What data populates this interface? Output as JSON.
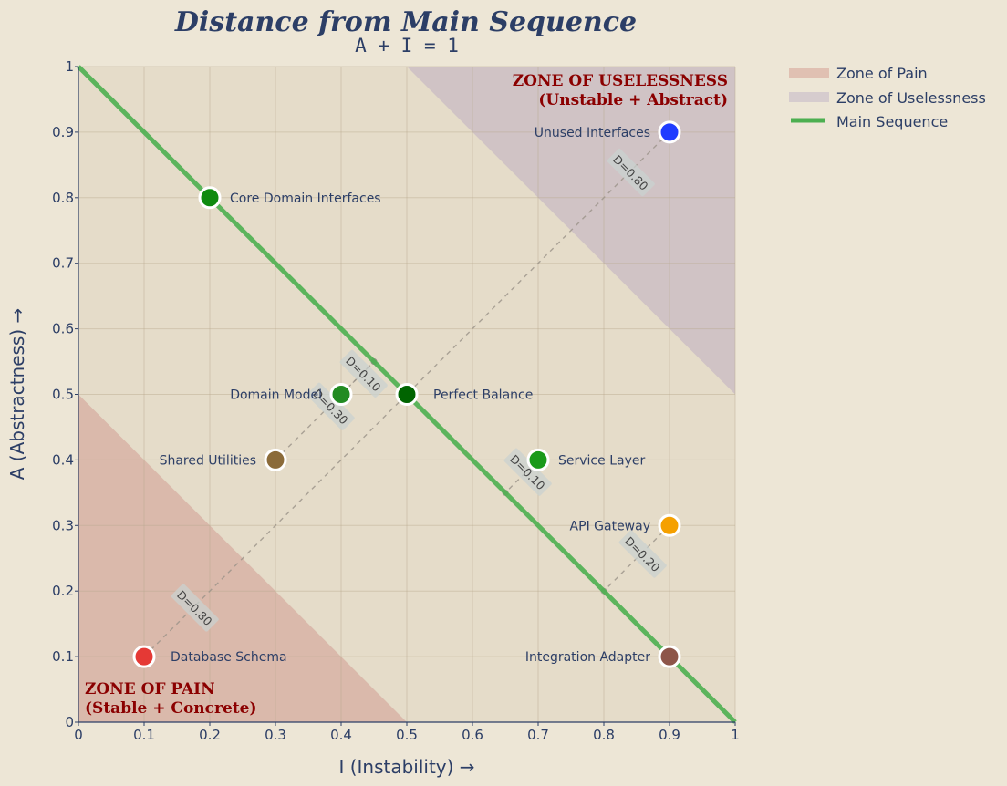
{
  "chart_data": {
    "type": "scatter",
    "title": "Distance from Main Sequence",
    "subtitle": "A + I = 1",
    "xlabel": "I (Instability) →",
    "ylabel": "A (Abstractness) →",
    "xlim": [
      0,
      1
    ],
    "ylim": [
      0,
      1
    ],
    "grid": true,
    "x_ticks": [
      "0",
      "0.1",
      "0.2",
      "0.3",
      "0.4",
      "0.5",
      "0.6",
      "0.7",
      "0.8",
      "0.9",
      "1"
    ],
    "y_ticks": [
      "0",
      "0.1",
      "0.2",
      "0.3",
      "0.4",
      "0.5",
      "0.6",
      "0.7",
      "0.8",
      "0.9",
      "1"
    ],
    "legend_position": "outside-right-top",
    "legend": [
      {
        "label": "Zone of Pain",
        "type": "patch",
        "color": "#e0c0b2"
      },
      {
        "label": "Zone of Uselessness",
        "type": "patch",
        "color": "#d6ccce"
      },
      {
        "label": "Main Sequence",
        "type": "line",
        "color": "#4caf50"
      }
    ],
    "main_sequence": {
      "from": [
        0,
        1
      ],
      "to": [
        1,
        0
      ],
      "color": "#4caf50"
    },
    "zones": [
      {
        "name": "Zone of Pain",
        "label": "ZONE OF PAIN",
        "sublabel": "(Stable + Concrete)",
        "polygon": [
          [
            0,
            0
          ],
          [
            0.5,
            0
          ],
          [
            0,
            0.5
          ]
        ],
        "color": "#d8b3a6"
      },
      {
        "name": "Zone of Uselessness",
        "label": "ZONE OF USELESSNESS",
        "sublabel": "(Unstable + Abstract)",
        "polygon": [
          [
            0.5,
            1
          ],
          [
            1,
            1
          ],
          [
            1,
            0.5
          ]
        ],
        "color": "#cdc0c4"
      }
    ],
    "points": [
      {
        "name": "Core Domain Interfaces",
        "I": 0.2,
        "A": 0.8,
        "D": 0.0,
        "color": "#0e8a0e",
        "label_side": "right"
      },
      {
        "name": "Unused Interfaces",
        "I": 0.9,
        "A": 0.9,
        "D": 0.8,
        "d_label": "D=0.80",
        "color": "#1f3cff",
        "label_side": "left",
        "proj": [
          0.5,
          0.5
        ]
      },
      {
        "name": "Domain Model",
        "I": 0.4,
        "A": 0.5,
        "D": 0.1,
        "d_label": "D=0.10",
        "color": "#228b22",
        "label_side": "left",
        "proj": [
          0.45,
          0.55
        ]
      },
      {
        "name": "Perfect Balance",
        "I": 0.5,
        "A": 0.5,
        "D": 0.0,
        "color": "#006400",
        "label_side": "right"
      },
      {
        "name": "Shared Utilities",
        "I": 0.3,
        "A": 0.4,
        "D": 0.3,
        "d_label": "D=0.30",
        "color": "#8b6b3a",
        "label_side": "left",
        "proj": [
          0.45,
          0.55
        ]
      },
      {
        "name": "Service Layer",
        "I": 0.7,
        "A": 0.4,
        "D": 0.1,
        "d_label": "D=0.10",
        "color": "#1a9a1a",
        "label_side": "right",
        "proj": [
          0.65,
          0.35
        ]
      },
      {
        "name": "API Gateway",
        "I": 0.9,
        "A": 0.3,
        "D": 0.2,
        "d_label": "D=0.20",
        "color": "#f5a000",
        "label_side": "left",
        "proj": [
          0.8,
          0.2
        ]
      },
      {
        "name": "Database Schema",
        "I": 0.1,
        "A": 0.1,
        "D": 0.8,
        "d_label": "D=0.80",
        "color": "#e53935",
        "label_side": "right",
        "proj": [
          0.5,
          0.5
        ]
      },
      {
        "name": "Integration Adapter",
        "I": 0.9,
        "A": 0.1,
        "D": 0.0,
        "color": "#8d5549",
        "label_side": "left"
      }
    ]
  }
}
